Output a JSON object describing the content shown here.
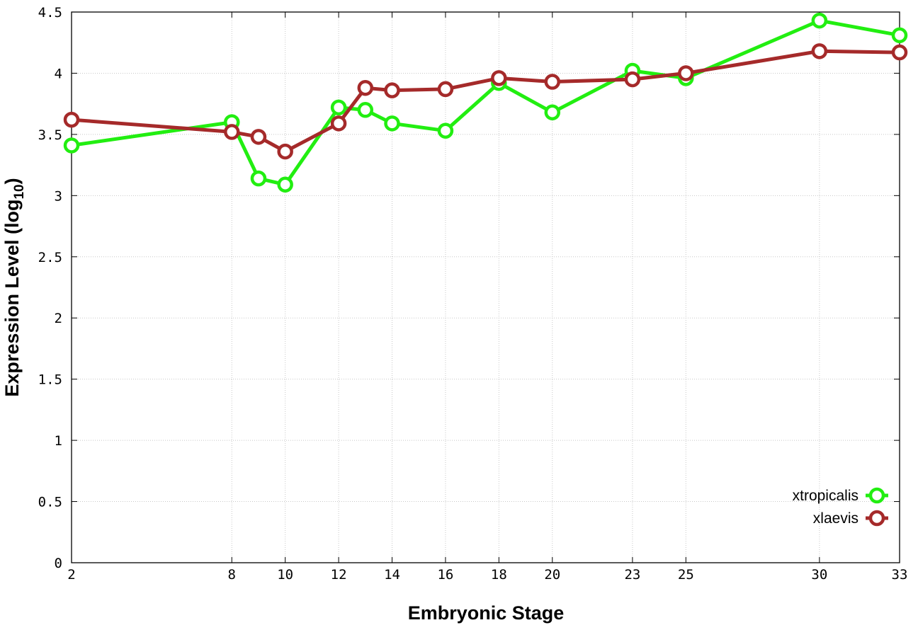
{
  "chart_data": {
    "type": "line",
    "xlabel": "Embryonic Stage",
    "ylabel_main": "Expression Level (log",
    "ylabel_sub": "10",
    "ylabel_close": ")",
    "xlim": [
      2,
      33
    ],
    "ylim": [
      0,
      4.5
    ],
    "x_ticks": [
      2,
      8,
      10,
      12,
      14,
      16,
      18,
      20,
      23,
      25,
      30,
      33
    ],
    "y_ticks": [
      0,
      0.5,
      1,
      1.5,
      2,
      2.5,
      3,
      3.5,
      4,
      4.5
    ],
    "y_tick_labels": [
      "0",
      "0.5",
      "1",
      "1.5",
      "2",
      "2.5",
      "3",
      "3.5",
      "4",
      "4.5"
    ],
    "grid": true,
    "legend_position": "bottom-right",
    "series": [
      {
        "name": "xtropicalis",
        "color": "#22ee11",
        "x": [
          2,
          8,
          9,
          10,
          12,
          13,
          14,
          16,
          18,
          20,
          23,
          25,
          30,
          33
        ],
        "values": [
          3.41,
          3.6,
          3.14,
          3.09,
          3.72,
          3.7,
          3.59,
          3.53,
          3.92,
          3.68,
          4.02,
          3.96,
          4.43,
          4.31
        ]
      },
      {
        "name": "xlaevis",
        "color": "#a52a2a",
        "x": [
          2,
          8,
          9,
          10,
          12,
          13,
          14,
          16,
          18,
          20,
          23,
          25,
          30,
          33
        ],
        "values": [
          3.62,
          3.52,
          3.48,
          3.36,
          3.59,
          3.88,
          3.86,
          3.87,
          3.96,
          3.93,
          3.95,
          4.0,
          4.18,
          4.17
        ]
      }
    ]
  }
}
